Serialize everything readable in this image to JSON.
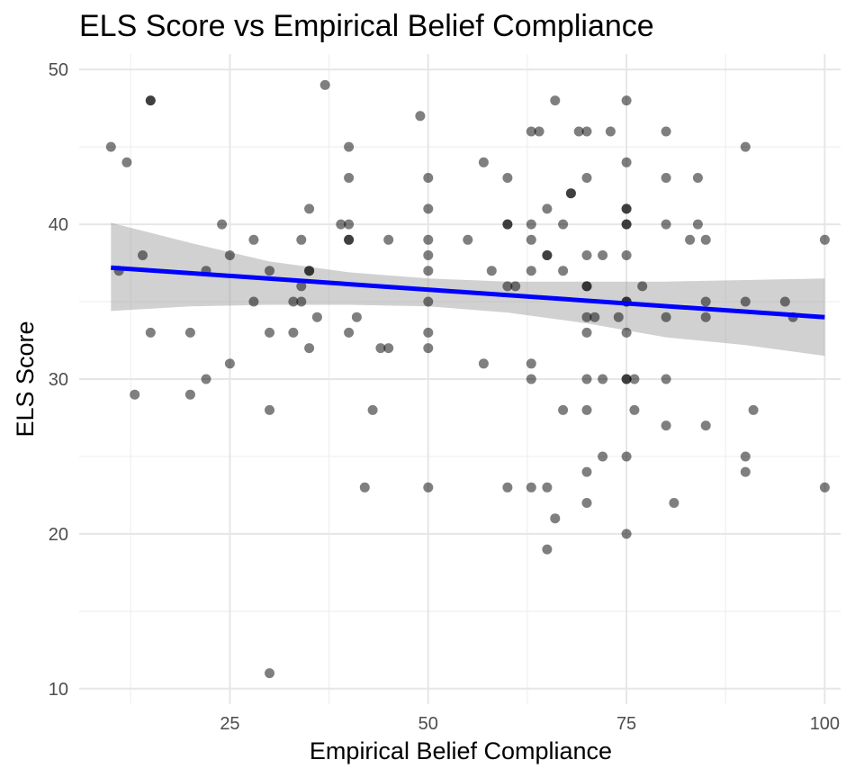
{
  "chart_data": {
    "type": "scatter",
    "title": "ELS Score vs Empirical Belief Compliance",
    "xlabel": "Empirical Belief Compliance",
    "ylabel": "ELS Score",
    "xlim": [
      6,
      102
    ],
    "ylim": [
      9,
      51
    ],
    "xticks": [
      25,
      50,
      75,
      100
    ],
    "yticks": [
      10,
      20,
      30,
      40,
      50
    ],
    "xticks_minor": [
      12.5,
      37.5,
      62.5,
      87.5
    ],
    "yticks_minor": [
      15,
      25,
      35,
      45
    ],
    "grid": true,
    "point_color": "#000000",
    "point_opacity": 0.5,
    "line_color": "#0000ff",
    "band_color": "#999999",
    "points": [
      [
        10,
        45
      ],
      [
        11,
        37
      ],
      [
        12,
        44
      ],
      [
        13,
        29
      ],
      [
        14,
        38
      ],
      [
        15,
        48
      ],
      [
        15,
        48
      ],
      [
        15,
        33
      ],
      [
        20,
        33
      ],
      [
        20,
        29
      ],
      [
        22,
        37
      ],
      [
        22,
        30
      ],
      [
        24,
        40
      ],
      [
        25,
        38
      ],
      [
        25,
        31
      ],
      [
        28,
        39
      ],
      [
        28,
        35
      ],
      [
        30,
        37
      ],
      [
        30,
        33
      ],
      [
        30,
        28
      ],
      [
        30,
        11
      ],
      [
        33,
        35
      ],
      [
        33,
        33
      ],
      [
        34,
        39
      ],
      [
        34,
        36
      ],
      [
        34,
        35
      ],
      [
        35,
        41
      ],
      [
        35,
        37
      ],
      [
        35,
        37
      ],
      [
        35,
        32
      ],
      [
        36,
        34
      ],
      [
        37,
        49
      ],
      [
        39,
        40
      ],
      [
        40,
        45
      ],
      [
        40,
        43
      ],
      [
        40,
        40
      ],
      [
        40,
        39
      ],
      [
        40,
        39
      ],
      [
        40,
        33
      ],
      [
        41,
        34
      ],
      [
        42,
        23
      ],
      [
        43,
        28
      ],
      [
        44,
        32
      ],
      [
        45,
        39
      ],
      [
        45,
        32
      ],
      [
        49,
        47
      ],
      [
        50,
        43
      ],
      [
        50,
        41
      ],
      [
        50,
        39
      ],
      [
        50,
        38
      ],
      [
        50,
        37
      ],
      [
        50,
        35
      ],
      [
        50,
        33
      ],
      [
        50,
        32
      ],
      [
        50,
        23
      ],
      [
        55,
        39
      ],
      [
        57,
        44
      ],
      [
        57,
        31
      ],
      [
        58,
        37
      ],
      [
        60,
        43
      ],
      [
        60,
        40
      ],
      [
        60,
        40
      ],
      [
        60,
        36
      ],
      [
        60,
        23
      ],
      [
        61,
        36
      ],
      [
        63,
        46
      ],
      [
        63,
        40
      ],
      [
        63,
        39
      ],
      [
        63,
        37
      ],
      [
        63,
        31
      ],
      [
        63,
        30
      ],
      [
        63,
        23
      ],
      [
        64,
        46
      ],
      [
        65,
        41
      ],
      [
        65,
        38
      ],
      [
        65,
        38
      ],
      [
        65,
        23
      ],
      [
        65,
        19
      ],
      [
        66,
        48
      ],
      [
        66,
        21
      ],
      [
        67,
        40
      ],
      [
        67,
        37
      ],
      [
        67,
        28
      ],
      [
        68,
        42
      ],
      [
        68,
        42
      ],
      [
        69,
        46
      ],
      [
        70,
        46
      ],
      [
        70,
        43
      ],
      [
        70,
        38
      ],
      [
        70,
        36
      ],
      [
        70,
        36
      ],
      [
        70,
        34
      ],
      [
        70,
        33
      ],
      [
        70,
        30
      ],
      [
        70,
        28
      ],
      [
        70,
        24
      ],
      [
        70,
        22
      ],
      [
        71,
        34
      ],
      [
        72,
        38
      ],
      [
        72,
        30
      ],
      [
        72,
        25
      ],
      [
        73,
        46
      ],
      [
        74,
        34
      ],
      [
        75,
        48
      ],
      [
        75,
        44
      ],
      [
        75,
        41
      ],
      [
        75,
        41
      ],
      [
        75,
        40
      ],
      [
        75,
        40
      ],
      [
        75,
        38
      ],
      [
        75,
        35
      ],
      [
        75,
        35
      ],
      [
        75,
        33
      ],
      [
        75,
        30
      ],
      [
        75,
        30
      ],
      [
        75,
        25
      ],
      [
        75,
        20
      ],
      [
        76,
        30
      ],
      [
        76,
        28
      ],
      [
        77,
        36
      ],
      [
        80,
        46
      ],
      [
        80,
        43
      ],
      [
        80,
        40
      ],
      [
        80,
        34
      ],
      [
        80,
        30
      ],
      [
        80,
        27
      ],
      [
        81,
        22
      ],
      [
        83,
        39
      ],
      [
        84,
        43
      ],
      [
        84,
        40
      ],
      [
        85,
        39
      ],
      [
        85,
        35
      ],
      [
        85,
        34
      ],
      [
        85,
        27
      ],
      [
        90,
        45
      ],
      [
        90,
        35
      ],
      [
        90,
        25
      ],
      [
        90,
        24
      ],
      [
        91,
        28
      ],
      [
        95,
        35
      ],
      [
        96,
        34
      ],
      [
        100,
        39
      ],
      [
        100,
        23
      ]
    ],
    "trend": {
      "x0": 10,
      "y0": 37.2,
      "x1": 100,
      "y1": 34.0
    },
    "band_upper": [
      [
        10,
        40.1
      ],
      [
        20,
        38.8
      ],
      [
        30,
        37.6
      ],
      [
        40,
        36.9
      ],
      [
        50,
        36.5
      ],
      [
        60,
        36.3
      ],
      [
        70,
        36.3
      ],
      [
        80,
        36.3
      ],
      [
        90,
        36.4
      ],
      [
        100,
        36.5
      ]
    ],
    "band_lower": [
      [
        10,
        34.4
      ],
      [
        20,
        34.7
      ],
      [
        30,
        34.8
      ],
      [
        40,
        34.8
      ],
      [
        50,
        34.7
      ],
      [
        60,
        34.3
      ],
      [
        70,
        33.6
      ],
      [
        80,
        32.7
      ],
      [
        90,
        32.2
      ],
      [
        100,
        31.5
      ]
    ]
  }
}
